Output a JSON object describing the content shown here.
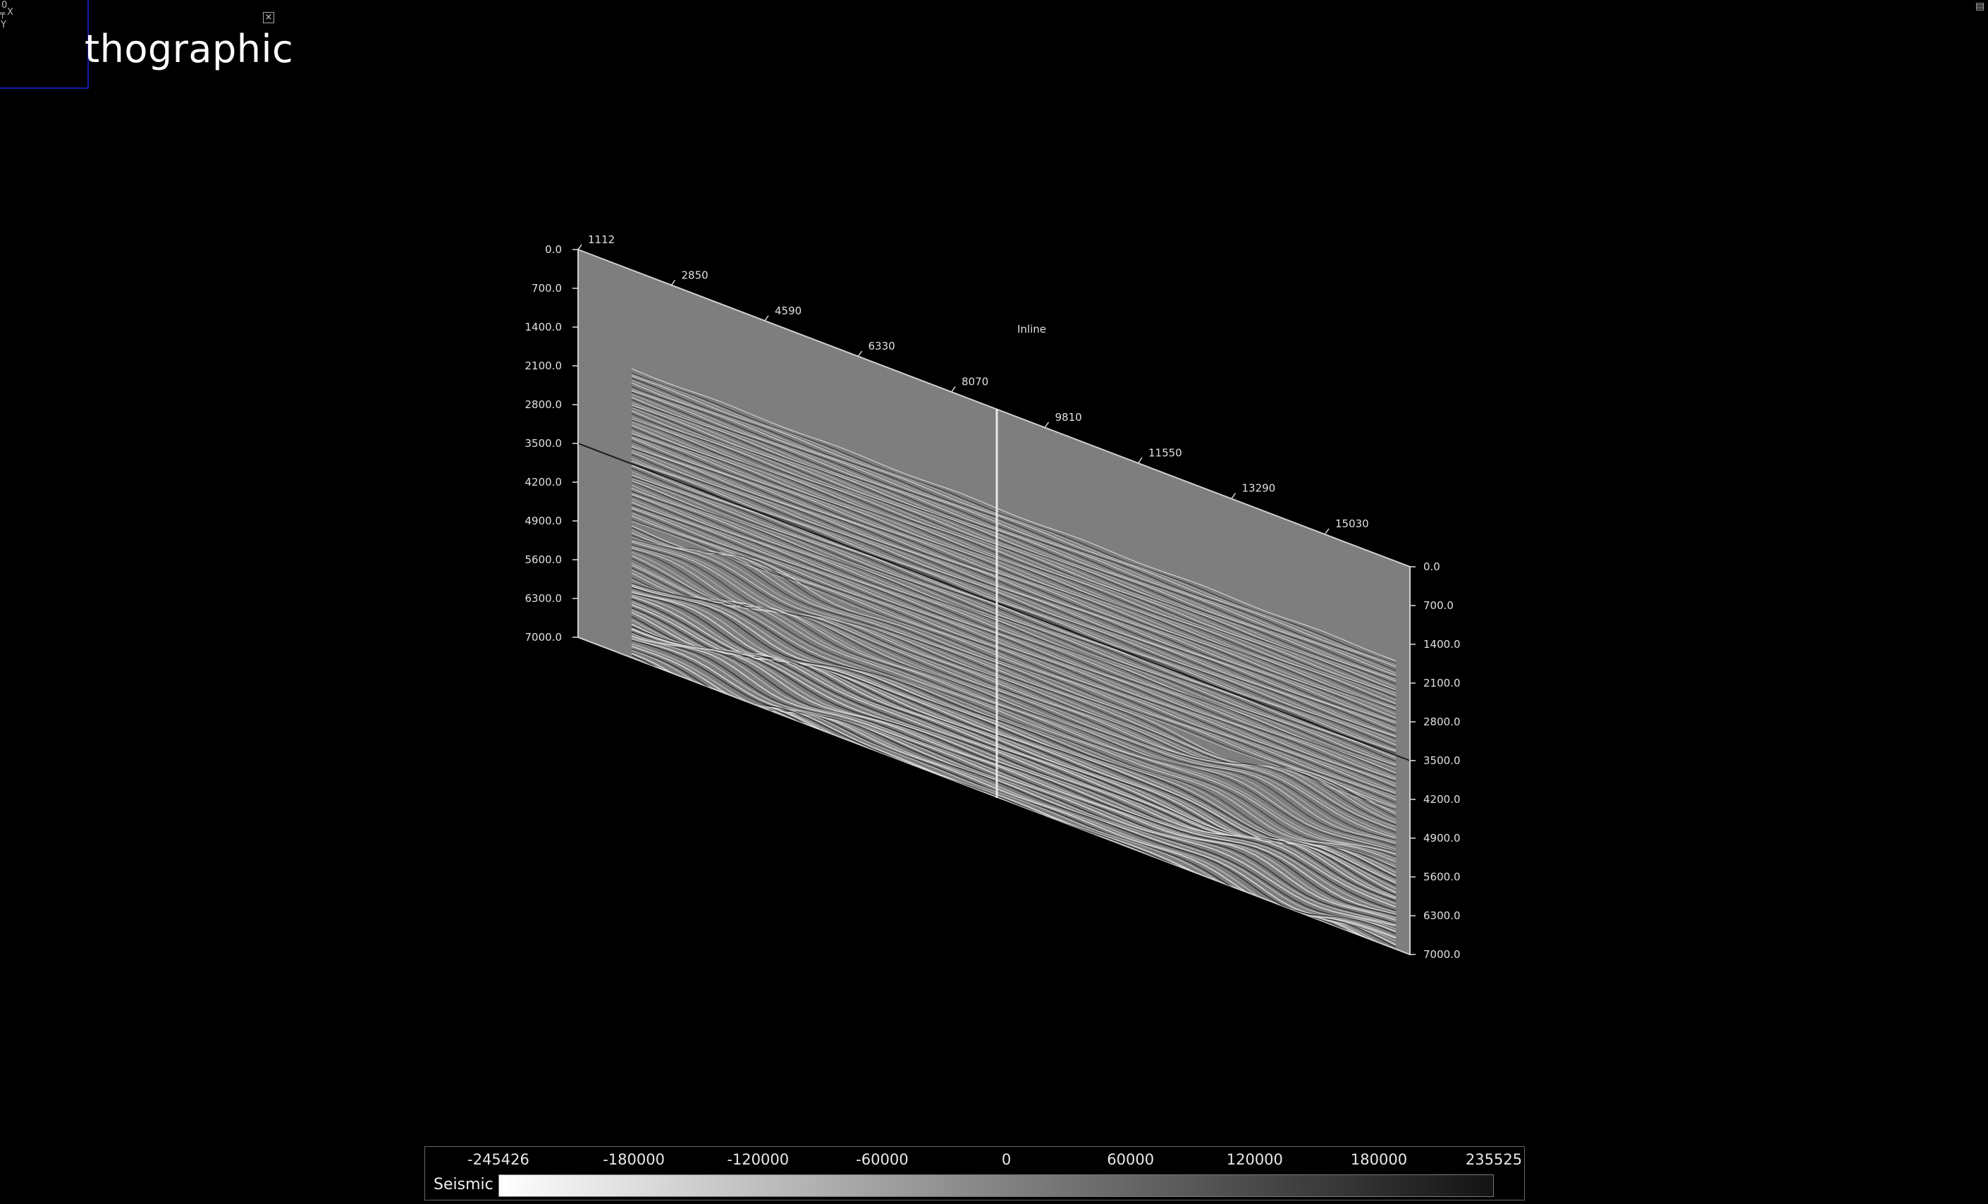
{
  "window": {
    "title_fragment": "thographic",
    "orientation": {
      "line1": "0",
      "line2": "X",
      "line3": "Y"
    }
  },
  "viewer": {
    "section_label": "Inline",
    "top_axis_ticks": [
      "1112",
      "2850",
      "4590",
      "6330",
      "8070",
      "9810",
      "11550",
      "13290",
      "15030"
    ],
    "depth_ticks_left": [
      "0.0",
      "700.0",
      "1400.0",
      "2100.0",
      "2800.0",
      "3500.0",
      "4200.0",
      "4900.0",
      "5600.0",
      "6300.0",
      "7000.0"
    ],
    "depth_ticks_right": [
      "0.0",
      "700.0",
      "1400.0",
      "2100.0",
      "2800.0",
      "3500.0",
      "4200.0",
      "4900.0",
      "5600.0",
      "6300.0",
      "7000.0"
    ]
  },
  "colorbar": {
    "label": "Seismic",
    "ticks": [
      "-245426",
      "-180000",
      "-120000",
      "-60000",
      "0",
      "60000",
      "120000",
      "180000",
      "235525"
    ],
    "min": -245426,
    "max": 235525,
    "colormap": "white-to-black grayscale"
  },
  "icons": {
    "close": "close-icon",
    "corner": "layout-icon"
  },
  "colors": {
    "background": "#000000",
    "panel_gray": "#7e7e7e",
    "frame": "#cccccc",
    "orientation_border": "#1a1aa8"
  }
}
